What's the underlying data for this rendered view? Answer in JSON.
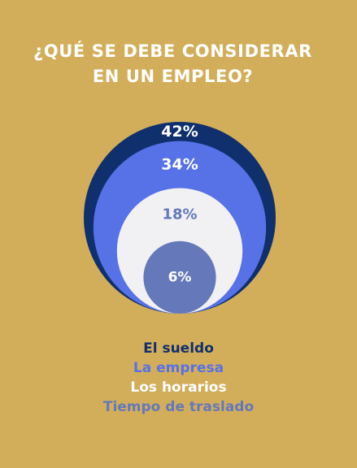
{
  "title_lines": [
    "¿QUÉ SE DEBE CONSIDERAR",
    "EN UN EMPLEO?"
  ],
  "colors": {
    "background": "#d3ae5a",
    "title": "#ffffff"
  },
  "chart_data": {
    "type": "nested-circles",
    "title": "¿QUÉ SE DEBE CONSIDERAR EN UN EMPLEO?",
    "categories": [
      "El sueldo",
      "La empresa",
      "Los horarios",
      "Tiempo de traslado"
    ],
    "values": [
      42,
      34,
      18,
      6
    ],
    "labels": [
      "42%",
      "34%",
      "18%",
      "6%"
    ],
    "colors": [
      "#0f306c",
      "#5771e6",
      "#f1f0f2",
      "#6478ba"
    ],
    "label_colors": [
      "#ffffff",
      "#ffffff",
      "#6478ba",
      "#ffffff"
    ],
    "legend_colors": [
      "#0f306c",
      "#5771e6",
      "#ffffff",
      "#6478ba"
    ],
    "legend_position": "bottom"
  }
}
